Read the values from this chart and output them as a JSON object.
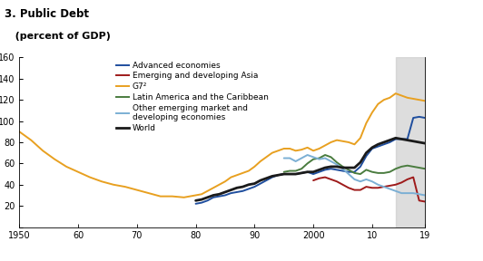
{
  "title_line1": "3. Public Debt",
  "title_line2": "   (percent of GDP)",
  "xlim": [
    1950,
    2019
  ],
  "ylim": [
    0,
    160
  ],
  "yticks": [
    0,
    20,
    40,
    60,
    80,
    100,
    120,
    140,
    160
  ],
  "xticks": [
    1950,
    1960,
    1970,
    1980,
    1990,
    2000,
    2010,
    2019
  ],
  "xticklabels": [
    "1950",
    "60",
    "70",
    "80",
    "90",
    "2000",
    "10",
    "19"
  ],
  "shade_start": 2014,
  "shade_end": 2019,
  "background_color": "#ffffff",
  "series": {
    "advanced": {
      "color": "#1f4e9e",
      "label": "Advanced economies",
      "lw": 1.4,
      "data": [
        [
          1980,
          22
        ],
        [
          1981,
          23
        ],
        [
          1982,
          25
        ],
        [
          1983,
          28
        ],
        [
          1984,
          29
        ],
        [
          1985,
          30
        ],
        [
          1986,
          32
        ],
        [
          1987,
          33
        ],
        [
          1988,
          34
        ],
        [
          1989,
          36
        ],
        [
          1990,
          38
        ],
        [
          1991,
          41
        ],
        [
          1992,
          44
        ],
        [
          1993,
          47
        ],
        [
          1994,
          49
        ],
        [
          1995,
          50
        ],
        [
          1996,
          50
        ],
        [
          1997,
          50
        ],
        [
          1998,
          51
        ],
        [
          1999,
          52
        ],
        [
          2000,
          50
        ],
        [
          2001,
          52
        ],
        [
          2002,
          54
        ],
        [
          2003,
          55
        ],
        [
          2004,
          54
        ],
        [
          2005,
          53
        ],
        [
          2006,
          52
        ],
        [
          2007,
          52
        ],
        [
          2008,
          57
        ],
        [
          2009,
          67
        ],
        [
          2010,
          74
        ],
        [
          2011,
          76
        ],
        [
          2012,
          78
        ],
        [
          2013,
          80
        ],
        [
          2014,
          83
        ],
        [
          2015,
          83
        ],
        [
          2016,
          83
        ],
        [
          2017,
          103
        ],
        [
          2018,
          104
        ],
        [
          2019,
          103
        ]
      ]
    },
    "emerging_asia": {
      "color": "#9e1a1a",
      "label": "Emerging and developing Asia",
      "lw": 1.4,
      "data": [
        [
          2000,
          44
        ],
        [
          2001,
          46
        ],
        [
          2002,
          47
        ],
        [
          2003,
          45
        ],
        [
          2004,
          43
        ],
        [
          2005,
          40
        ],
        [
          2006,
          37
        ],
        [
          2007,
          35
        ],
        [
          2008,
          35
        ],
        [
          2009,
          38
        ],
        [
          2010,
          37
        ],
        [
          2011,
          37
        ],
        [
          2012,
          38
        ],
        [
          2013,
          39
        ],
        [
          2014,
          40
        ],
        [
          2015,
          42
        ],
        [
          2016,
          45
        ],
        [
          2017,
          47
        ],
        [
          2018,
          25
        ],
        [
          2019,
          24
        ]
      ]
    },
    "g7": {
      "color": "#e8a020",
      "label": "G7²",
      "lw": 1.4,
      "data": [
        [
          1950,
          90
        ],
        [
          1952,
          82
        ],
        [
          1954,
          72
        ],
        [
          1956,
          64
        ],
        [
          1958,
          57
        ],
        [
          1960,
          52
        ],
        [
          1962,
          47
        ],
        [
          1964,
          43
        ],
        [
          1966,
          40
        ],
        [
          1968,
          38
        ],
        [
          1970,
          35
        ],
        [
          1972,
          32
        ],
        [
          1974,
          29
        ],
        [
          1976,
          29
        ],
        [
          1978,
          28
        ],
        [
          1980,
          30
        ],
        [
          1981,
          31
        ],
        [
          1982,
          34
        ],
        [
          1983,
          37
        ],
        [
          1984,
          40
        ],
        [
          1985,
          43
        ],
        [
          1986,
          47
        ],
        [
          1987,
          49
        ],
        [
          1988,
          51
        ],
        [
          1989,
          53
        ],
        [
          1990,
          57
        ],
        [
          1991,
          62
        ],
        [
          1992,
          66
        ],
        [
          1993,
          70
        ],
        [
          1994,
          72
        ],
        [
          1995,
          74
        ],
        [
          1996,
          74
        ],
        [
          1997,
          72
        ],
        [
          1998,
          73
        ],
        [
          1999,
          75
        ],
        [
          2000,
          72
        ],
        [
          2001,
          74
        ],
        [
          2002,
          77
        ],
        [
          2003,
          80
        ],
        [
          2004,
          82
        ],
        [
          2005,
          81
        ],
        [
          2006,
          80
        ],
        [
          2007,
          78
        ],
        [
          2008,
          84
        ],
        [
          2009,
          98
        ],
        [
          2010,
          108
        ],
        [
          2011,
          116
        ],
        [
          2012,
          120
        ],
        [
          2013,
          122
        ],
        [
          2014,
          126
        ],
        [
          2015,
          124
        ],
        [
          2016,
          122
        ],
        [
          2017,
          121
        ],
        [
          2018,
          120
        ],
        [
          2019,
          119
        ]
      ]
    },
    "latam": {
      "color": "#4a7c3f",
      "label": "Latin America and the Caribbean",
      "lw": 1.4,
      "data": [
        [
          1995,
          52
        ],
        [
          1996,
          53
        ],
        [
          1997,
          53
        ],
        [
          1998,
          55
        ],
        [
          1999,
          60
        ],
        [
          2000,
          64
        ],
        [
          2001,
          65
        ],
        [
          2002,
          68
        ],
        [
          2003,
          66
        ],
        [
          2004,
          61
        ],
        [
          2005,
          57
        ],
        [
          2006,
          54
        ],
        [
          2007,
          51
        ],
        [
          2008,
          50
        ],
        [
          2009,
          54
        ],
        [
          2010,
          52
        ],
        [
          2011,
          51
        ],
        [
          2012,
          51
        ],
        [
          2013,
          52
        ],
        [
          2014,
          55
        ],
        [
          2015,
          57
        ],
        [
          2016,
          58
        ],
        [
          2017,
          57
        ],
        [
          2018,
          56
        ],
        [
          2019,
          55
        ]
      ]
    },
    "other_emerging": {
      "color": "#7bafd4",
      "label": "Other emerging market and\ndeveloping economies",
      "lw": 1.4,
      "data": [
        [
          1995,
          65
        ],
        [
          1996,
          65
        ],
        [
          1997,
          62
        ],
        [
          1998,
          65
        ],
        [
          1999,
          68
        ],
        [
          2000,
          66
        ],
        [
          2001,
          64
        ],
        [
          2002,
          65
        ],
        [
          2003,
          62
        ],
        [
          2004,
          59
        ],
        [
          2005,
          55
        ],
        [
          2006,
          50
        ],
        [
          2007,
          45
        ],
        [
          2008,
          43
        ],
        [
          2009,
          45
        ],
        [
          2010,
          43
        ],
        [
          2011,
          40
        ],
        [
          2012,
          38
        ],
        [
          2013,
          36
        ],
        [
          2014,
          34
        ],
        [
          2015,
          32
        ],
        [
          2016,
          32
        ],
        [
          2017,
          32
        ],
        [
          2018,
          31
        ],
        [
          2019,
          30
        ]
      ]
    },
    "world": {
      "color": "#1a1a1a",
      "label": "World",
      "lw": 2.0,
      "data": [
        [
          1980,
          25
        ],
        [
          1981,
          26
        ],
        [
          1982,
          28
        ],
        [
          1983,
          30
        ],
        [
          1984,
          31
        ],
        [
          1985,
          33
        ],
        [
          1986,
          35
        ],
        [
          1987,
          37
        ],
        [
          1988,
          38
        ],
        [
          1989,
          40
        ],
        [
          1990,
          41
        ],
        [
          1991,
          44
        ],
        [
          1992,
          46
        ],
        [
          1993,
          48
        ],
        [
          1994,
          49
        ],
        [
          1995,
          50
        ],
        [
          1996,
          50
        ],
        [
          1997,
          50
        ],
        [
          1998,
          51
        ],
        [
          1999,
          52
        ],
        [
          2000,
          52
        ],
        [
          2001,
          54
        ],
        [
          2002,
          56
        ],
        [
          2003,
          57
        ],
        [
          2004,
          57
        ],
        [
          2005,
          56
        ],
        [
          2006,
          56
        ],
        [
          2007,
          56
        ],
        [
          2008,
          61
        ],
        [
          2009,
          70
        ],
        [
          2010,
          75
        ],
        [
          2011,
          78
        ],
        [
          2012,
          80
        ],
        [
          2013,
          82
        ],
        [
          2014,
          84
        ],
        [
          2015,
          83
        ],
        [
          2016,
          82
        ],
        [
          2017,
          81
        ],
        [
          2018,
          80
        ],
        [
          2019,
          79
        ]
      ]
    }
  }
}
